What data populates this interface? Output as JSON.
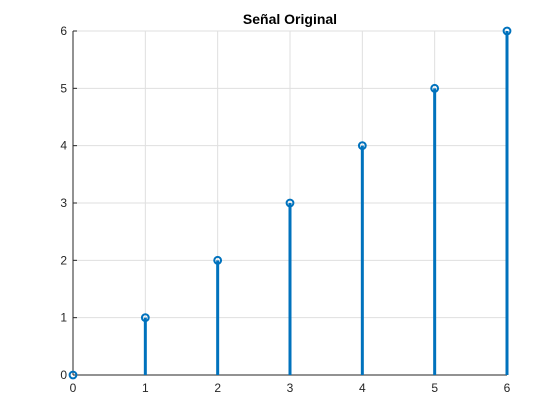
{
  "chart_data": {
    "type": "stem",
    "title": "Señal Original",
    "xlabel": "",
    "ylabel": "",
    "x": [
      0,
      1,
      2,
      3,
      4,
      5,
      6
    ],
    "y": [
      0,
      1,
      2,
      3,
      4,
      5,
      6
    ],
    "xlim": [
      0,
      6
    ],
    "ylim": [
      0,
      6
    ],
    "xticks": [
      0,
      1,
      2,
      3,
      4,
      5,
      6
    ],
    "yticks": [
      0,
      1,
      2,
      3,
      4,
      5,
      6
    ],
    "xtick_labels": [
      "0",
      "1",
      "2",
      "3",
      "4",
      "5",
      "6"
    ],
    "ytick_labels": [
      "0",
      "1",
      "2",
      "3",
      "4",
      "5",
      "6"
    ],
    "grid": true,
    "marker": "circle-open",
    "series_color": "#0072BD",
    "grid_color": "#DFDFDF",
    "axis_color": "#262626"
  }
}
